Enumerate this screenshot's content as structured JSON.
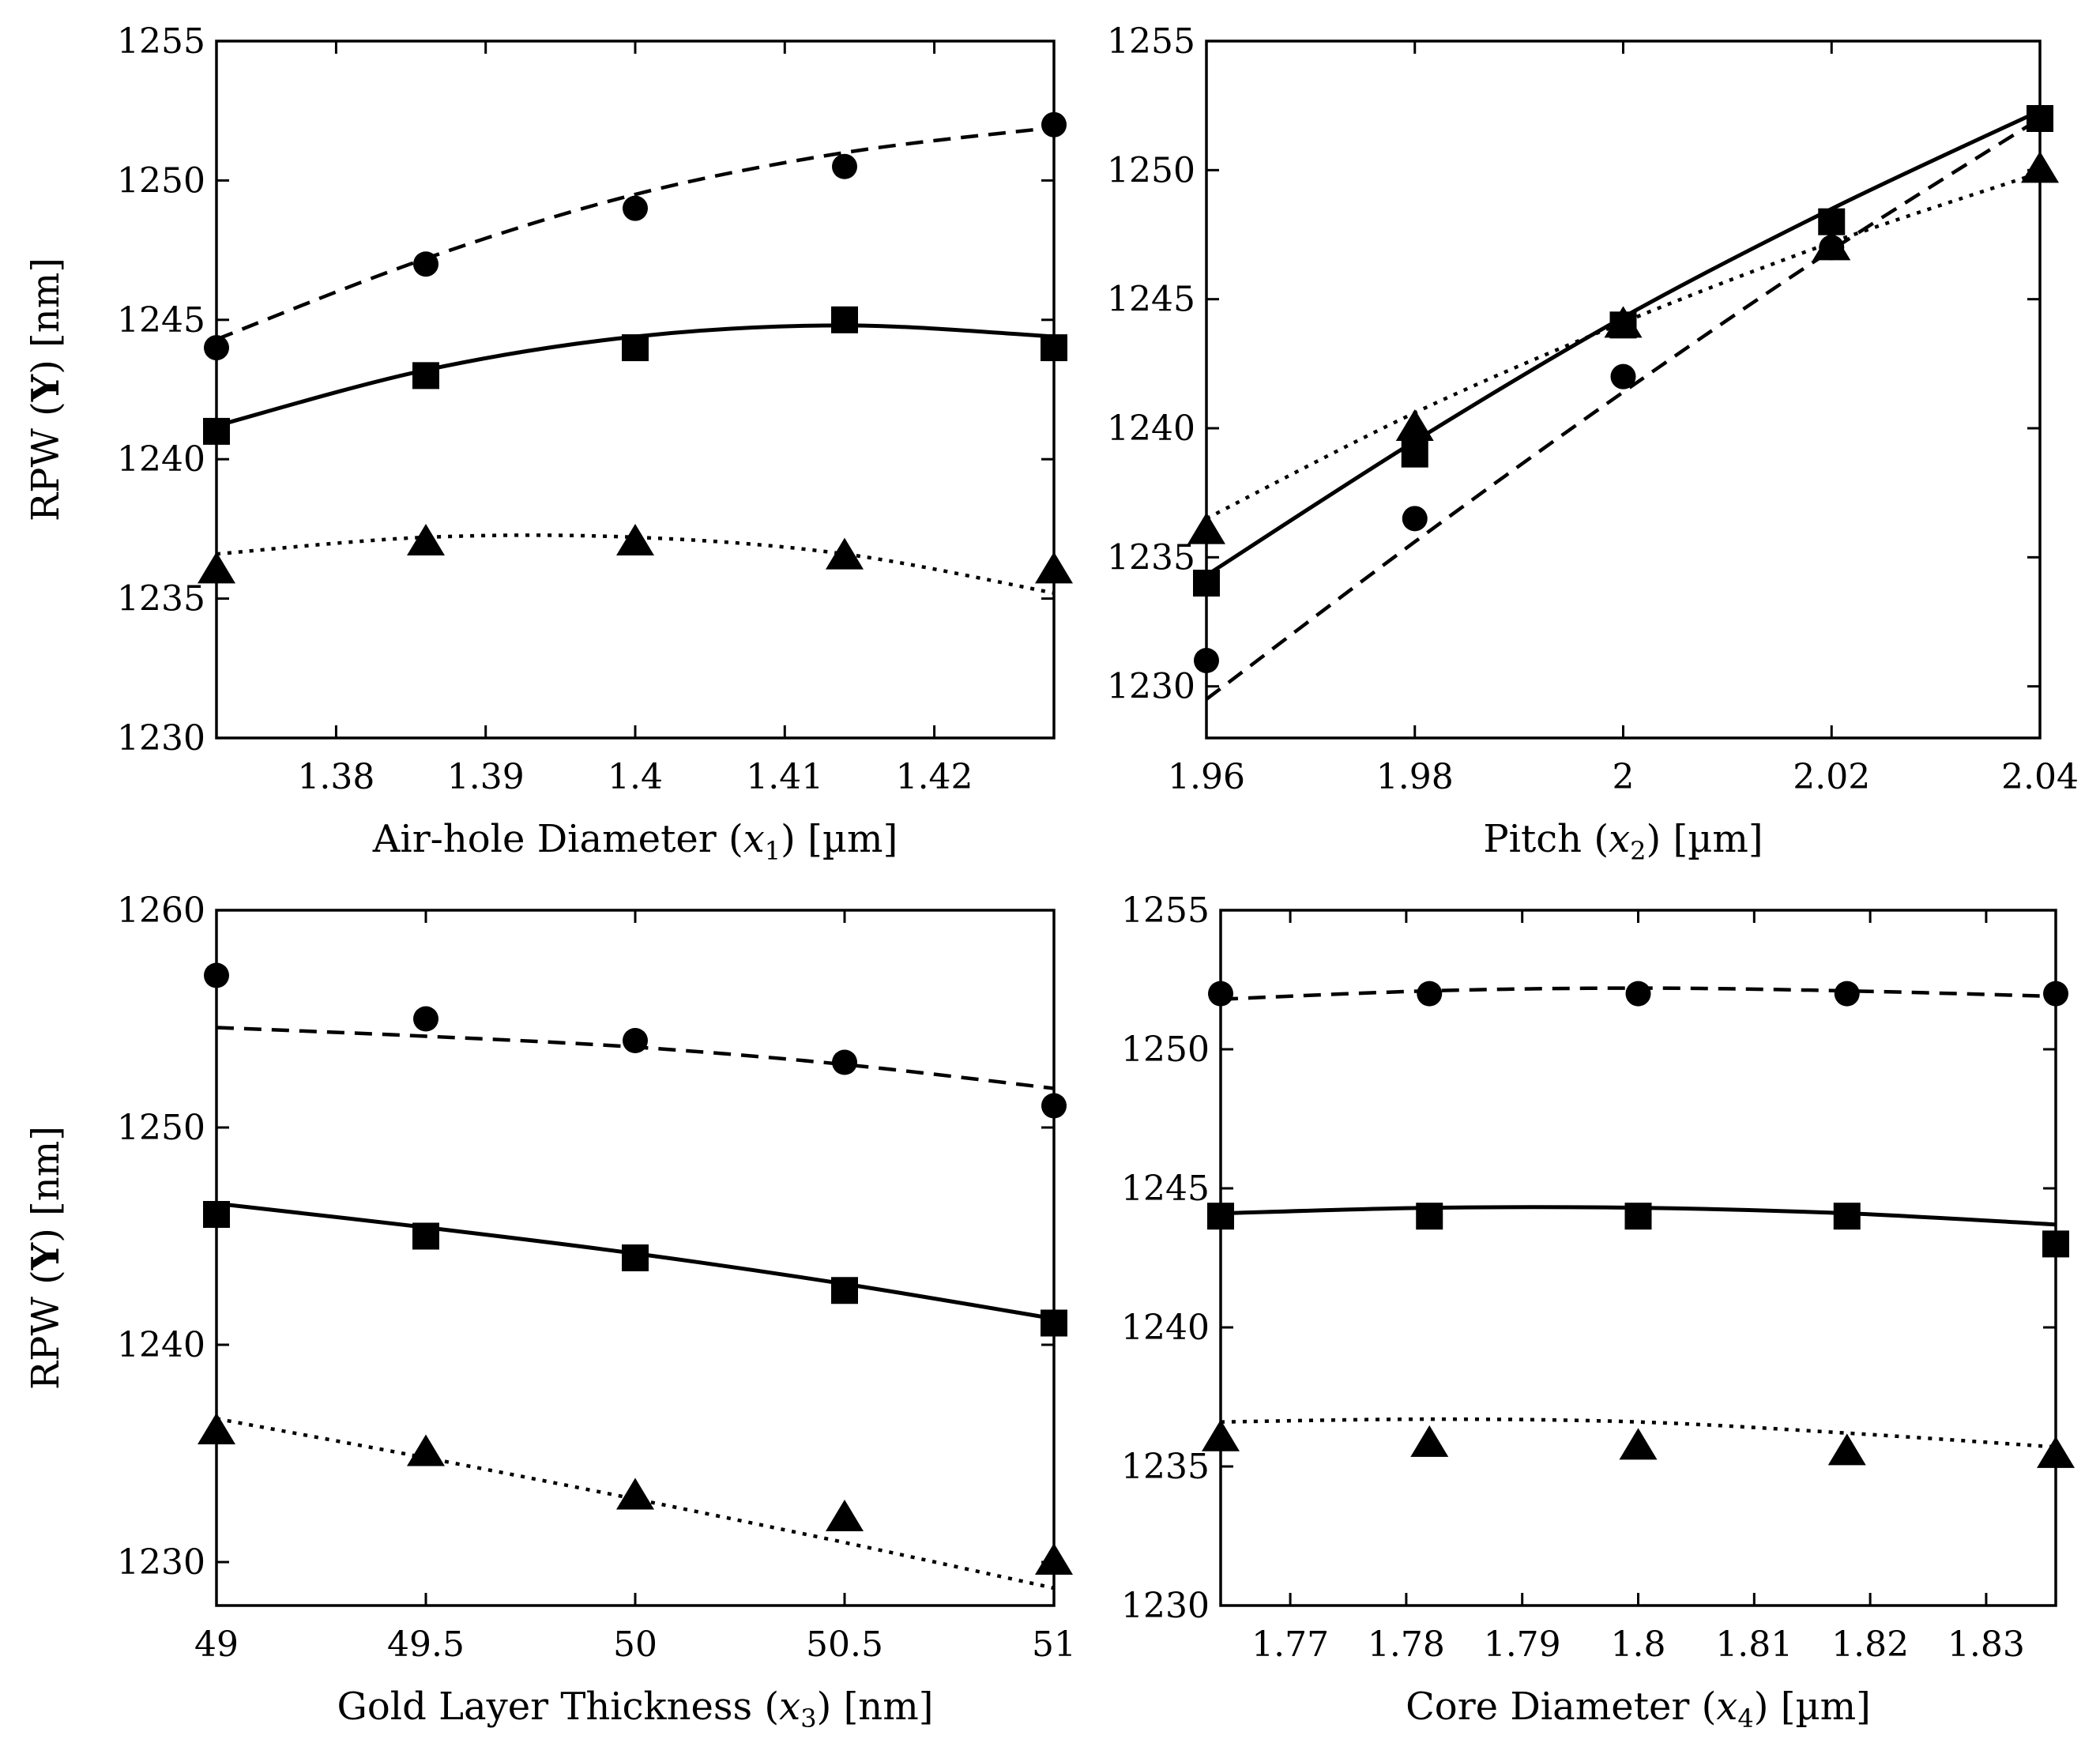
{
  "chart_data": [
    {
      "id": "p1",
      "type": "line",
      "xlabel": "Air-hole Diameter (x1) [µm]",
      "xlabel_parts": {
        "pre": "Air-hole Diameter (",
        "var": "x",
        "sub": "1",
        "post": ") [µm]"
      },
      "ylabel": "RPW (Y) [nm]",
      "ylabel_parts": {
        "pre": "RPW (",
        "bold": "Y",
        "post": ") [nm]"
      },
      "xlim": [
        1.372,
        1.428
      ],
      "ylim": [
        1230,
        1255
      ],
      "xticks": [
        1.38,
        1.39,
        1.4,
        1.41,
        1.42
      ],
      "xtick_labels": [
        "1.38",
        "1.39",
        "1.4",
        "1.41",
        "1.42"
      ],
      "yticks": [
        1230,
        1235,
        1240,
        1245,
        1250,
        1255
      ],
      "ytick_labels": [
        "1230",
        "1235",
        "1240",
        "1245",
        "1250",
        "1255"
      ],
      "x": [
        1.372,
        1.386,
        1.4,
        1.414,
        1.428
      ],
      "series": [
        {
          "name": "circle",
          "marker": "circle",
          "line": "dashed",
          "values": [
            1244,
            1247,
            1249,
            1250.5,
            1252
          ],
          "fit": [
            1244.3,
            1247.2,
            1249.5,
            1251.0,
            1251.9
          ]
        },
        {
          "name": "square",
          "marker": "square",
          "line": "solid",
          "values": [
            1241,
            1243,
            1244,
            1245,
            1244
          ],
          "fit": [
            1241.2,
            1243.2,
            1244.4,
            1244.8,
            1244.4
          ]
        },
        {
          "name": "triangle",
          "marker": "triangle",
          "line": "dotted",
          "values": [
            1236,
            1237,
            1237,
            1236.5,
            1236
          ],
          "fit": [
            1236.6,
            1237.2,
            1237.2,
            1236.6,
            1235.2
          ]
        }
      ]
    },
    {
      "id": "p2",
      "type": "line",
      "xlabel": "Pitch (x2) [µm]",
      "xlabel_parts": {
        "pre": "Pitch (",
        "var": "x",
        "sub": "2",
        "post": ") [µm]"
      },
      "ylabel": "",
      "xlim": [
        1.96,
        2.04
      ],
      "ylim": [
        1228,
        1255
      ],
      "xticks": [
        1.96,
        1.98,
        2.0,
        2.02,
        2.04
      ],
      "xtick_labels": [
        "1.96",
        "1.98",
        "2",
        "2.02",
        "2.04"
      ],
      "yticks": [
        1230,
        1235,
        1240,
        1245,
        1250,
        1255
      ],
      "ytick_labels": [
        "1230",
        "1235",
        "1240",
        "1245",
        "1250",
        "1255"
      ],
      "x": [
        1.96,
        1.98,
        2.0,
        2.02,
        2.04
      ],
      "series": [
        {
          "name": "circle",
          "marker": "circle",
          "line": "dashed",
          "values": [
            1231,
            1236.5,
            1242,
            1247,
            1252
          ],
          "fit": [
            1229.5,
            1235.6,
            1241.4,
            1246.9,
            1252.0
          ]
        },
        {
          "name": "square",
          "marker": "square",
          "line": "solid",
          "values": [
            1234,
            1239,
            1244,
            1248,
            1252
          ],
          "fit": [
            1234.3,
            1239.5,
            1244.3,
            1248.5,
            1252.3
          ]
        },
        {
          "name": "triangle",
          "marker": "triangle",
          "line": "dotted",
          "values": [
            1236,
            1240,
            1244,
            1247,
            1250
          ],
          "fit": [
            1236.5,
            1240.6,
            1244.1,
            1247.2,
            1249.9
          ]
        }
      ]
    },
    {
      "id": "p3",
      "type": "line",
      "xlabel": "Gold Layer Thickness (x3) [nm]",
      "xlabel_parts": {
        "pre": "Gold Layer Thickness (",
        "var": "x",
        "sub": "3",
        "post": ") [nm]"
      },
      "ylabel": "RPW (Y) [nm]",
      "ylabel_parts": {
        "pre": "RPW (",
        "bold": "Y",
        "post": ") [nm]"
      },
      "xlim": [
        49,
        51
      ],
      "ylim": [
        1228,
        1260
      ],
      "xticks": [
        49,
        49.5,
        50,
        50.5,
        51
      ],
      "xtick_labels": [
        "49",
        "49.5",
        "50",
        "50.5",
        "51"
      ],
      "yticks": [
        1230,
        1240,
        1250,
        1260
      ],
      "ytick_labels": [
        "1230",
        "1240",
        "1250",
        "1260"
      ],
      "x": [
        49,
        49.5,
        50,
        50.5,
        51
      ],
      "series": [
        {
          "name": "circle",
          "marker": "circle",
          "line": "dashed",
          "values": [
            1257,
            1255,
            1254,
            1253,
            1251
          ],
          "fit": [
            1254.6,
            1254.2,
            1253.7,
            1252.9,
            1251.8
          ]
        },
        {
          "name": "square",
          "marker": "square",
          "line": "solid",
          "values": [
            1246,
            1245,
            1244,
            1242.5,
            1241
          ],
          "fit": [
            1246.5,
            1245.4,
            1244.2,
            1242.8,
            1241.2
          ]
        },
        {
          "name": "triangle",
          "marker": "triangle",
          "line": "dotted",
          "values": [
            1236,
            1235,
            1233,
            1232,
            1230
          ],
          "fit": [
            1236.6,
            1234.8,
            1232.9,
            1230.9,
            1228.8
          ]
        }
      ]
    },
    {
      "id": "p4",
      "type": "line",
      "xlabel": "Core Diameter (x4) [µm]",
      "xlabel_parts": {
        "pre": "Core Diameter (",
        "var": "x",
        "sub": "4",
        "post": ") [µm]"
      },
      "ylabel": "",
      "xlim": [
        1.764,
        1.836
      ],
      "ylim": [
        1230,
        1255
      ],
      "xticks": [
        1.77,
        1.78,
        1.79,
        1.8,
        1.81,
        1.82,
        1.83
      ],
      "xtick_labels": [
        "1.77",
        "1.78",
        "1.79",
        "1.8",
        "1.81",
        "1.82",
        "1.83"
      ],
      "yticks": [
        1230,
        1235,
        1240,
        1245,
        1250,
        1255
      ],
      "ytick_labels": [
        "1230",
        "1235",
        "1240",
        "1245",
        "1250",
        "1255"
      ],
      "x": [
        1.764,
        1.782,
        1.8,
        1.818,
        1.836
      ],
      "series": [
        {
          "name": "circle",
          "marker": "circle",
          "line": "dashed",
          "values": [
            1252,
            1252,
            1252,
            1252,
            1252
          ],
          "fit": [
            1251.8,
            1252.1,
            1252.2,
            1252.1,
            1251.9
          ]
        },
        {
          "name": "square",
          "marker": "square",
          "line": "solid",
          "values": [
            1244,
            1244,
            1244,
            1244,
            1243
          ],
          "fit": [
            1244.1,
            1244.3,
            1244.3,
            1244.1,
            1243.7
          ]
        },
        {
          "name": "triangle",
          "marker": "triangle",
          "line": "dotted",
          "values": [
            1236,
            1235.8,
            1235.7,
            1235.5,
            1235.4
          ],
          "fit": [
            1236.6,
            1236.7,
            1236.6,
            1236.2,
            1235.7
          ]
        }
      ]
    }
  ]
}
